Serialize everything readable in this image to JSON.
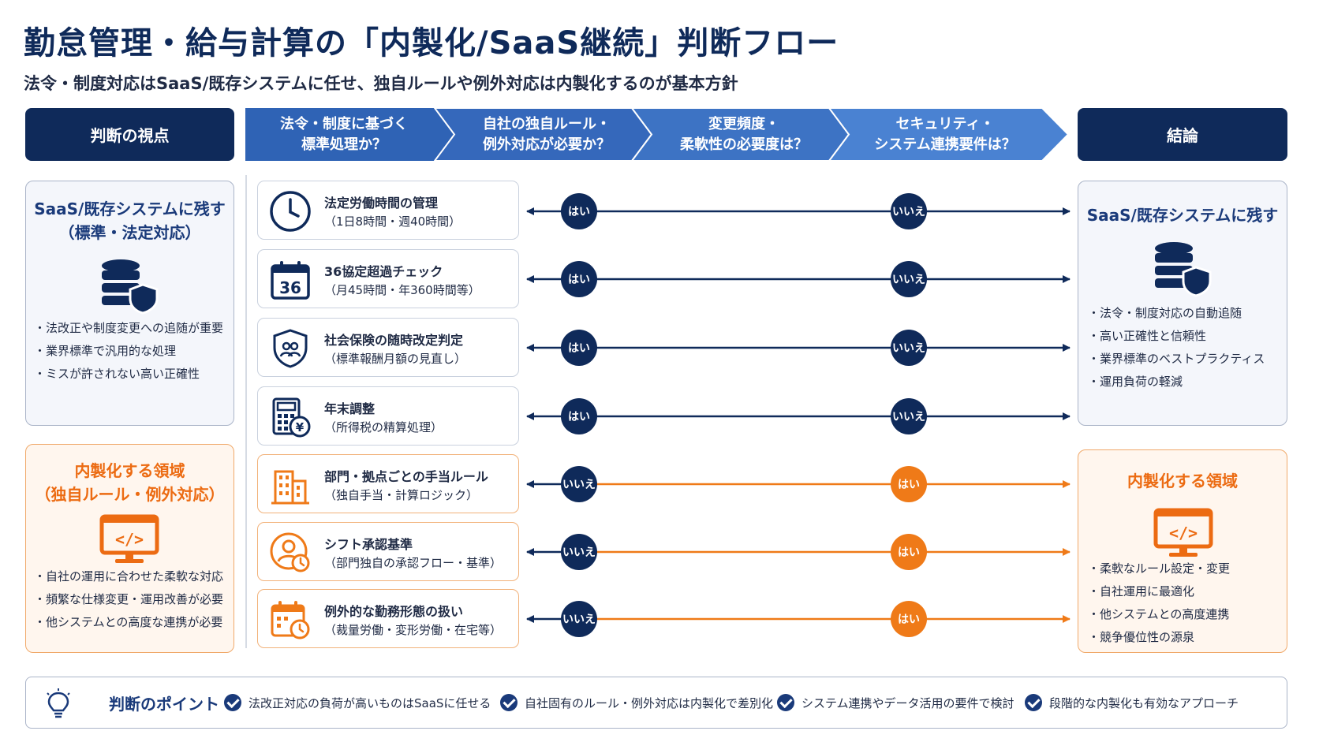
{
  "title": "勤怠管理・給与計算の「内製化/SaaS継続」判断フロー",
  "subtitle": "法令・制度対応はSaaS/既存システムに任せ、独自ルールや例外対応は内製化するのが基本方針",
  "header": {
    "left": "判断の視点",
    "right": "結論",
    "steps": [
      {
        "line1": "法令・制度に基づく",
        "line2": "標準処理か？"
      },
      {
        "line1": "自社の独自ルール・",
        "line2": "例外対応が必要か？"
      },
      {
        "line1": "変更頻度・",
        "line2": "柔軟性の必要度は？"
      },
      {
        "line1": "セキュリティ・",
        "line2": "システム連携要件は？"
      }
    ]
  },
  "left_panels": {
    "saas": {
      "title_line1": "SaaS/既存システムに残す",
      "title_line2": "（標準・法定対応）",
      "icon": "database-shield-icon",
      "bullets": [
        "法改正や制度変更への追随が重要",
        "業界標準で汎用的な処理",
        "ミスが許されない高い正確性"
      ]
    },
    "inhouse": {
      "title_line1": "内製化する領域",
      "title_line2": "（独自ルール・例外対応）",
      "icon": "code-monitor-icon",
      "bullets": [
        "自社の運用に合わせた柔軟な対応",
        "頻繁な仕様変更・運用改善が必要",
        "他システムとの高度な連携が必要"
      ]
    }
  },
  "items": [
    {
      "title": "法定労働時間の管理",
      "sub": "（1日8時間・週40時間）",
      "icon": "clock-icon",
      "type": "saas",
      "first": "はい",
      "second": "いいえ"
    },
    {
      "title": "36協定超過チェック",
      "sub": "（月45時間・年360時間等）",
      "icon": "calendar-36-icon",
      "calendar_number": "36",
      "type": "saas",
      "first": "はい",
      "second": "いいえ"
    },
    {
      "title": "社会保険の随時改定判定",
      "sub": "（標準報酬月額の見直し）",
      "icon": "shield-people-icon",
      "type": "saas",
      "first": "はい",
      "second": "いいえ"
    },
    {
      "title": "年末調整",
      "sub": "（所得税の精算処理）",
      "icon": "calculator-yen-icon",
      "type": "saas",
      "first": "はい",
      "second": "いいえ"
    },
    {
      "title": "部門・拠点ごとの手当ルール",
      "sub": "（独自手当・計算ロジック）",
      "icon": "building-icon",
      "type": "inhouse",
      "first": "いいえ",
      "second": "はい"
    },
    {
      "title": "シフト承認基準",
      "sub": "（部門独自の承認フロー・基準）",
      "icon": "user-clock-icon",
      "type": "inhouse",
      "first": "いいえ",
      "second": "はい"
    },
    {
      "title": "例外的な勤務形態の扱い",
      "sub": "（裁量労働・変形労働・在宅等）",
      "icon": "calendar-clock-icon",
      "type": "inhouse",
      "first": "いいえ",
      "second": "はい"
    }
  ],
  "right_panels": {
    "saas": {
      "title": "SaaS/既存システムに残す",
      "icon": "database-shield-icon",
      "bullets": [
        "法令・制度対応の自動追随",
        "高い正確性と信頼性",
        "業界標準のベストプラクティス",
        "運用負荷の軽減"
      ]
    },
    "inhouse": {
      "title": "内製化する領域",
      "icon": "code-monitor-icon",
      "bullets": [
        "柔軟なルール設定・変更",
        "自社運用に最適化",
        "他システムとの高度連携",
        "競争優位性の源泉"
      ]
    }
  },
  "points": {
    "title": "判断のポイント",
    "icon": "lightbulb-icon",
    "items": [
      "法改正対応の負荷が高いものはSaaSに任せる",
      "自社固有のルール・例外対応は内製化で差別化",
      "システム連携やデータ活用の要件で検討",
      "段階的な内製化も有効なアプローチ"
    ]
  },
  "colors": {
    "navy": "#0f2a5a",
    "blue": "#2f63b5",
    "orange": "#ef7a18"
  }
}
